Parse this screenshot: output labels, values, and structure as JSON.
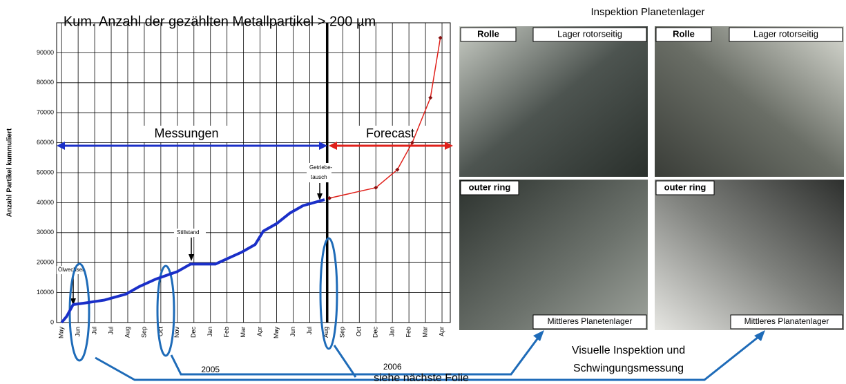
{
  "chart_data": {
    "type": "line",
    "title": "Kum. Anzahl der gezählten Metallpartikel > 200 µm",
    "y_label": "Anzahl Partikel kummuliert",
    "ylim": [
      0,
      100000
    ],
    "yticks": [
      0,
      10000,
      20000,
      30000,
      40000,
      50000,
      60000,
      70000,
      80000,
      90000
    ],
    "xlim": [
      -0.3,
      23.5
    ],
    "xticks": [
      {
        "value": 0,
        "label": "May"
      },
      {
        "value": 1,
        "label": "Jun"
      },
      {
        "value": 2,
        "label": "Jul"
      },
      {
        "value": 3,
        "label": "Jul"
      },
      {
        "value": 4,
        "label": "Aug"
      },
      {
        "value": 5,
        "label": "Sep"
      },
      {
        "value": 6,
        "label": "Oct"
      },
      {
        "value": 7,
        "label": "Nov"
      },
      {
        "value": 8,
        "label": "Dec"
      },
      {
        "value": 9,
        "label": "Jan"
      },
      {
        "value": 10,
        "label": "Feb"
      },
      {
        "value": 11,
        "label": "Mar"
      },
      {
        "value": 12,
        "label": "Apr"
      },
      {
        "value": 13,
        "label": "May"
      },
      {
        "value": 14,
        "label": "Jun"
      },
      {
        "value": 15,
        "label": "Jul"
      },
      {
        "value": 16,
        "label": "Aug"
      },
      {
        "value": 17,
        "label": "Sep"
      },
      {
        "value": 18,
        "label": "Oct"
      },
      {
        "value": 19,
        "label": "Dec"
      },
      {
        "value": 20,
        "label": "Jan"
      },
      {
        "value": 21,
        "label": "Feb"
      },
      {
        "value": 22,
        "label": "Mar"
      },
      {
        "value": 23,
        "label": "Apr"
      }
    ],
    "years": [
      "2005",
      "2006"
    ],
    "grid": true,
    "series": [
      {
        "name": "Messungen",
        "color": "#1a2fc8",
        "x": [
          0,
          0.3,
          0.7,
          1.4,
          2.6,
          3.9,
          4.7,
          5.7,
          7.0,
          7.8,
          9.3,
          9.9,
          10.9,
          11.7,
          12.2,
          13.0,
          13.8,
          14.6,
          15.9
        ],
        "values": [
          0,
          2000,
          6000,
          6500,
          7500,
          9500,
          12000,
          14500,
          17000,
          19500,
          19500,
          21000,
          23500,
          26000,
          30500,
          33000,
          36500,
          39000,
          41000
        ]
      },
      {
        "name": "Forecast",
        "color": "#e0201a",
        "x": [
          16.2,
          19.0,
          20.3,
          21.2,
          22.3,
          22.9
        ],
        "values": [
          41500,
          45000,
          51000,
          60000,
          75000,
          95000
        ]
      }
    ],
    "annotations": [
      "Ölwechsel",
      "Stillstand",
      "Getriebe-",
      "tausch"
    ]
  },
  "panels": {
    "title": "Inspektion Planetenlager",
    "photos": [
      {
        "label": "Rolle",
        "caption": "Lager rotorseitig"
      },
      {
        "label": "Rolle",
        "caption": "Lager rotorseitig"
      },
      {
        "label": "outer ring",
        "caption": "Mittleres Planetenlager"
      },
      {
        "label": "outer ring",
        "caption": "Mittleres Planatenlager"
      }
    ],
    "note": "siehe nächste Folie",
    "inspection": [
      "Visuelle Inspektion und",
      "Schwingungsmessung"
    ]
  }
}
